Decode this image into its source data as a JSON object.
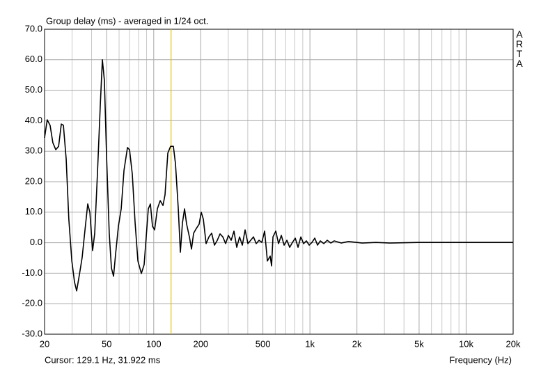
{
  "chart_data": {
    "type": "line",
    "title": "Group delay (ms) - averaged in 1/24 oct.",
    "brand": "ARTA",
    "x_label": "Frequency (Hz)",
    "cursor": {
      "label": "Cursor: 129.1 Hz, 31.922 ms",
      "x": 129.1,
      "color": "#e8c000"
    },
    "x_scale": "log",
    "grid": true,
    "xlim": [
      20,
      20000
    ],
    "ylim": [
      -30,
      70
    ],
    "xticks": [
      20,
      50,
      100,
      200,
      500,
      {
        "value": 1000,
        "label": "1k"
      },
      {
        "value": 2000,
        "label": "2k"
      },
      {
        "value": 5000,
        "label": "5k"
      },
      {
        "value": 10000,
        "label": "10k"
      },
      {
        "value": 20000,
        "label": "20k"
      }
    ],
    "yticks": [
      {
        "value": 70,
        "label": "70.0"
      },
      {
        "value": 60,
        "label": "60.0"
      },
      {
        "value": 50,
        "label": "50.0"
      },
      {
        "value": 40,
        "label": "40.0"
      },
      {
        "value": 30,
        "label": "30.0"
      },
      {
        "value": 20,
        "label": "20.0"
      },
      {
        "value": 10,
        "label": "10.0"
      },
      {
        "value": 0,
        "label": "0.0"
      },
      {
        "value": -10,
        "label": "-10.0"
      },
      {
        "value": -20,
        "label": "-20.0"
      },
      {
        "value": -30,
        "label": "-30.0"
      }
    ],
    "x": [
      20,
      20.8,
      21.7,
      22.6,
      23.6,
      24.6,
      25.6,
      26.4,
      27.5,
      28.6,
      29.9,
      31.1,
      32.1,
      33.4,
      34.8,
      36.3,
      37.8,
      39.0,
      40.6,
      41.9,
      43.6,
      45.5,
      46.9,
      48.3,
      49.9,
      51.9,
      53.6,
      55.3,
      57.0,
      59.4,
      61.9,
      64.5,
      67.9,
      70.0,
      72.9,
      76.0,
      79.2,
      83.3,
      86.8,
      89.5,
      92.3,
      95.2,
      98.2,
      101.3,
      105.5,
      110.0,
      114.6,
      118.1,
      123.1,
      128.2,
      133.6,
      137.8,
      143.6,
      148.1,
      152.7,
      157.5,
      162.4,
      169.2,
      174.5,
      180.0,
      187.5,
      195.3,
      201.4,
      207.8,
      216.4,
      225.6,
      235,
      244.8,
      255.2,
      265.8,
      277,
      288.6,
      300.6,
      313.2,
      326.4,
      340,
      354.4,
      369.2,
      384.6,
      400.8,
      417.6,
      435,
      453.2,
      472.4,
      492,
      512.8,
      534.2,
      556.6,
      568.2,
      580,
      604.4,
      629.6,
      656,
      683.6,
      712.2,
      742,
      773.2,
      805.4,
      839.2,
      874.4,
      911,
      949.2,
      989,
      1030,
      1074,
      1119,
      1166,
      1227,
      1291,
      1360,
      1431,
      1586,
      1757,
      2158,
      2650,
      3254,
      4906,
      6024,
      8200,
      20000
    ],
    "series": [
      {
        "color": "#000000",
        "values": [
          34.4,
          40.3,
          38.5,
          32.8,
          30.5,
          31.6,
          38.9,
          38.5,
          27.5,
          7.7,
          -6,
          -12.9,
          -15.8,
          -10.6,
          -4.9,
          4.2,
          12.7,
          10,
          -2.6,
          3.1,
          22.5,
          45.3,
          60,
          53.3,
          28.2,
          3.1,
          -8.3,
          -11,
          -3.7,
          5.4,
          11.1,
          23.7,
          31.2,
          30.5,
          22.5,
          6.5,
          -6,
          -10.1,
          -7.2,
          1.9,
          11.1,
          12.7,
          5.4,
          4.2,
          11.1,
          13.8,
          12.2,
          15.7,
          29.4,
          31.6,
          31.6,
          25.9,
          11.1,
          -3.1,
          6.5,
          11.1,
          6.1,
          1.9,
          -2.1,
          3.1,
          4.7,
          6.1,
          10,
          7.7,
          -0.3,
          1.9,
          3.1,
          -0.8,
          0.8,
          2.9,
          1.9,
          -0.3,
          2.4,
          0.8,
          3.8,
          -1.5,
          1.9,
          -0.8,
          4.2,
          -0.3,
          0.8,
          1.9,
          -0.3,
          0.8,
          0.1,
          3.8,
          -6,
          -4.4,
          -7.6,
          1.9,
          3.8,
          -0.3,
          2.4,
          -0.8,
          0.8,
          -1.5,
          0.1,
          1.5,
          -1.5,
          1.9,
          -0.3,
          0.6,
          -0.8,
          0.1,
          1.5,
          -0.8,
          0.6,
          -0.3,
          0.8,
          -0.1,
          0.6,
          -0.1,
          0.4,
          -0.1,
          0.1,
          -0.1,
          0.1,
          0.1,
          0.1,
          0.1
        ]
      }
    ]
  }
}
